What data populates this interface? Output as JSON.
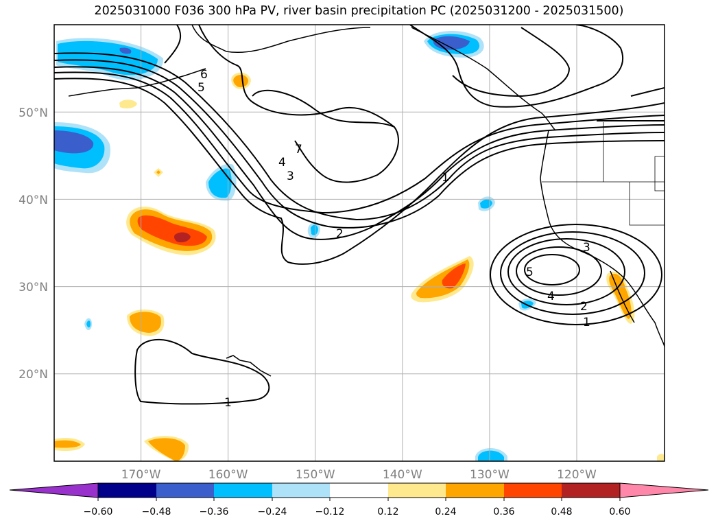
{
  "title": "2025031000 F036 300 hPa PV, river basin precipitation PC (2025031200 - 2025031500)",
  "map": {
    "lon_range": [
      -180,
      -110
    ],
    "lat_range": [
      10,
      60
    ],
    "lat_ticks": [
      "50°N",
      "40°N",
      "30°N",
      "20°N"
    ],
    "lon_ticks": [
      "170°W",
      "160°W",
      "150°W",
      "140°W",
      "130°W",
      "120°W"
    ],
    "gridlines": true,
    "contour_labels": [
      "6",
      "5",
      "7",
      "4",
      "3",
      "2",
      "1",
      "3",
      "5",
      "4",
      "2",
      "1",
      "1"
    ]
  },
  "colorbar": {
    "ticks": [
      "−0.60",
      "−0.48",
      "−0.36",
      "−0.24",
      "−0.12",
      "0.12",
      "0.24",
      "0.36",
      "0.48",
      "0.60"
    ],
    "colors": [
      "#9932cc",
      "#00008b",
      "#3a5fcd",
      "#00bfff",
      "#aee2f8",
      "#ffffff",
      "#ffe98f",
      "#ffa500",
      "#ff4500",
      "#b22222",
      "#ff88aa"
    ]
  }
}
